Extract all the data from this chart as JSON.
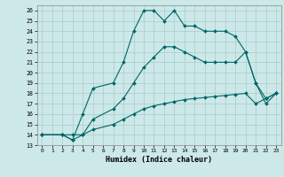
{
  "xlabel": "Humidex (Indice chaleur)",
  "background_color": "#cce8e8",
  "grid_color": "#aacccc",
  "line_color": "#006666",
  "xlim": [
    -0.5,
    23.5
  ],
  "ylim": [
    13,
    26.5
  ],
  "yticks": [
    13,
    14,
    15,
    16,
    17,
    18,
    19,
    20,
    21,
    22,
    23,
    24,
    25,
    26
  ],
  "xticks": [
    0,
    1,
    2,
    3,
    4,
    5,
    6,
    7,
    8,
    9,
    10,
    11,
    12,
    13,
    14,
    15,
    16,
    17,
    18,
    19,
    20,
    21,
    22,
    23
  ],
  "line1_x": [
    0,
    2,
    3,
    4,
    5,
    7,
    8,
    9,
    10,
    11,
    12,
    13,
    14,
    15,
    16,
    17,
    18,
    19,
    20,
    21,
    22,
    23
  ],
  "line1_y": [
    14.0,
    14.0,
    13.5,
    16.0,
    18.5,
    19.0,
    21.0,
    24.0,
    26.0,
    26.0,
    25.0,
    26.0,
    24.5,
    24.5,
    24.0,
    24.0,
    24.0,
    23.5,
    22.0,
    19.0,
    17.5,
    18.0
  ],
  "line2_x": [
    0,
    2,
    3,
    4,
    5,
    7,
    8,
    9,
    10,
    11,
    12,
    13,
    14,
    15,
    16,
    17,
    18,
    19,
    20,
    21,
    22,
    23
  ],
  "line2_y": [
    14.0,
    14.0,
    14.0,
    14.0,
    15.5,
    16.5,
    17.5,
    19.0,
    20.5,
    21.5,
    22.5,
    22.5,
    22.0,
    21.5,
    21.0,
    21.0,
    21.0,
    21.0,
    22.0,
    19.0,
    17.0,
    18.0
  ],
  "line3_x": [
    0,
    2,
    3,
    4,
    5,
    7,
    8,
    9,
    10,
    11,
    12,
    13,
    14,
    15,
    16,
    17,
    18,
    19,
    20,
    21,
    22,
    23
  ],
  "line3_y": [
    14.0,
    14.0,
    13.5,
    14.0,
    14.5,
    15.0,
    15.5,
    16.0,
    16.5,
    16.8,
    17.0,
    17.2,
    17.4,
    17.5,
    17.6,
    17.7,
    17.8,
    17.9,
    18.0,
    17.0,
    17.5,
    18.0
  ]
}
